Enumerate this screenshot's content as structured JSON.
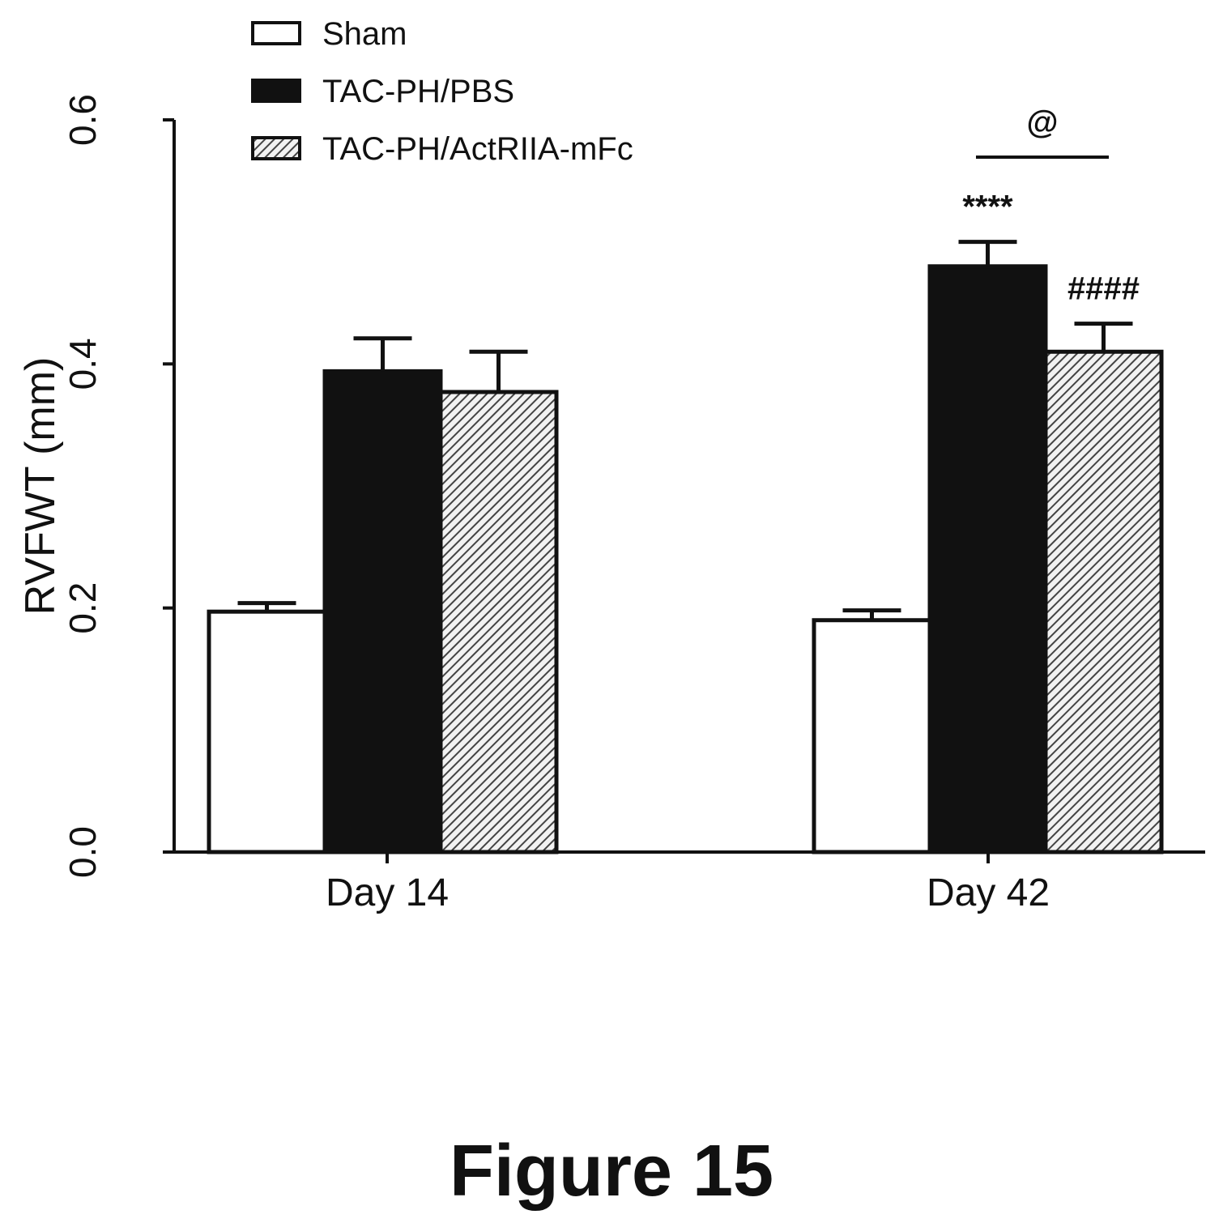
{
  "figure_caption": "Figure 15",
  "chart_data": {
    "type": "bar",
    "title": "",
    "ylabel": "RVFWT (mm)",
    "xlabel": "",
    "ylim": [
      0,
      0.6
    ],
    "yticks": [
      "0.0",
      "0.2",
      "0.4",
      "0.6"
    ],
    "categories": [
      "Day 14",
      "Day 42"
    ],
    "legend_position": "top-left",
    "series": [
      {
        "name": "Sham",
        "fill": "white",
        "values": [
          0.197,
          0.19
        ],
        "errors": [
          0.007,
          0.008
        ]
      },
      {
        "name": "TAC-PH/PBS",
        "fill": "black",
        "values": [
          0.394,
          0.48
        ],
        "errors": [
          0.027,
          0.02
        ]
      },
      {
        "name": "TAC-PH/ActRIIA-mFc",
        "fill": "hatched",
        "values": [
          0.377,
          0.41
        ],
        "errors": [
          0.033,
          0.023
        ]
      }
    ],
    "annotations": [
      {
        "text": "****",
        "category": "Day 42",
        "series": "TAC-PH/PBS"
      },
      {
        "text": "####",
        "category": "Day 42",
        "series": "TAC-PH/ActRIIA-mFc"
      },
      {
        "text": "@",
        "category": "Day 42",
        "bracket": [
          "TAC-PH/PBS",
          "TAC-PH/ActRIIA-mFc"
        ]
      }
    ]
  },
  "colors": {
    "ink": "#111111",
    "background": "#ffffff",
    "hatch": "#444444"
  }
}
